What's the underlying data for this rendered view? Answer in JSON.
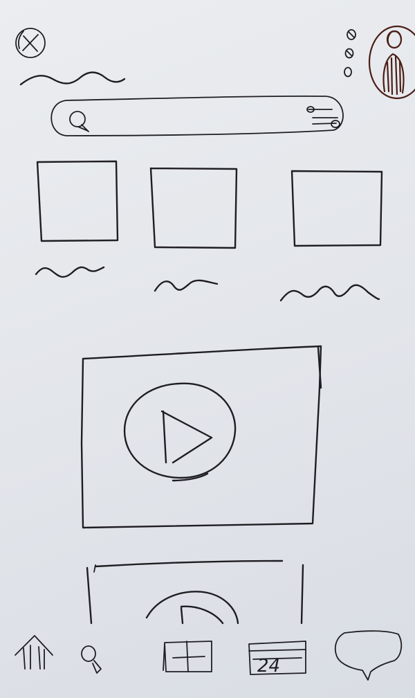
{
  "header": {
    "close_icon": "close-icon",
    "menu_icon": "kebab-menu-icon",
    "avatar_icon": "user-avatar-icon"
  },
  "search": {
    "search_icon": "search-icon",
    "filter_icon": "filter-sliders-icon"
  },
  "thumbnails": [
    {
      "icon": "image-placeholder"
    },
    {
      "icon": "image-placeholder"
    },
    {
      "icon": "image-placeholder"
    }
  ],
  "video": {
    "play_icon": "play-icon"
  },
  "bottom_nav": {
    "items": [
      {
        "name": "home",
        "icon": "home-icon"
      },
      {
        "name": "search",
        "icon": "search-icon"
      },
      {
        "name": "add",
        "icon": "add-icon"
      },
      {
        "name": "calendar",
        "icon": "calendar-icon",
        "label": "24"
      },
      {
        "name": "chat",
        "icon": "chat-icon"
      }
    ]
  }
}
